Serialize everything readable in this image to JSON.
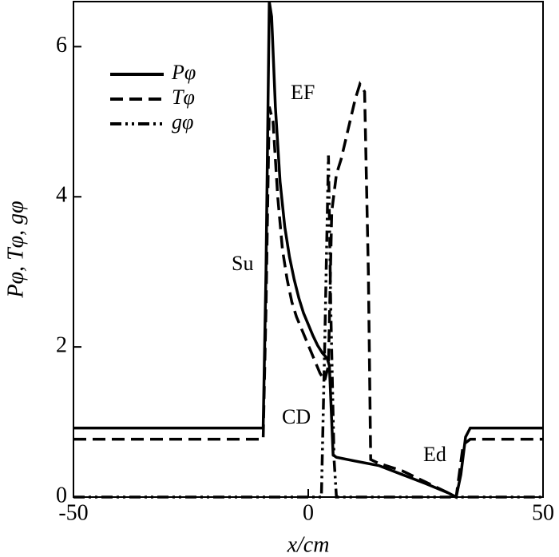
{
  "chart_data": {
    "type": "line",
    "xlabel": "x/cm",
    "ylabel": "Pφ, Tφ, gφ",
    "xlim": [
      -50,
      50
    ],
    "xticks": [
      -50,
      0,
      50
    ],
    "ylim": [
      0,
      6.6
    ],
    "yticks": [
      0,
      2,
      4,
      6
    ],
    "legend": "upper left",
    "annotations": [
      "EF",
      "Su",
      "CD",
      "Ed"
    ],
    "series": [
      {
        "name": "Pφ",
        "color": "#000000",
        "dash": "solid",
        "x": [
          -50,
          -9.6,
          -9.0,
          -8.3,
          -7.8,
          -7.0,
          -6.0,
          -5.0,
          -4.0,
          -3.0,
          -2.0,
          -1.0,
          0.0,
          1.0,
          2.0,
          3.0,
          4.0,
          4.5,
          5.3,
          6.0,
          10,
          15,
          20,
          25,
          30,
          31.5,
          32.5,
          33.5,
          34.5,
          50
        ],
        "values": [
          0.92,
          0.92,
          3.0,
          6.6,
          6.4,
          5.2,
          4.2,
          3.6,
          3.2,
          2.9,
          2.65,
          2.45,
          2.3,
          2.15,
          2.02,
          1.92,
          1.85,
          1.75,
          0.56,
          0.53,
          0.48,
          0.42,
          0.3,
          0.18,
          0.05,
          0.0,
          0.3,
          0.8,
          0.92,
          0.92
        ]
      },
      {
        "name": "Tφ",
        "color": "#000000",
        "dash": "dashed",
        "x": [
          -50,
          -9.6,
          -9.0,
          -8.3,
          -7.5,
          -6.5,
          -5.5,
          -4.5,
          -3.5,
          -2.5,
          -1.5,
          -0.5,
          0.5,
          1.5,
          2.5,
          3.5,
          4.3,
          5.0,
          6.0,
          7.0,
          8.5,
          10.0,
          11.0,
          12.0,
          12.8,
          13.3,
          15,
          20,
          25,
          30,
          31.5,
          33,
          34.5,
          50
        ],
        "values": [
          0.77,
          0.77,
          2.5,
          5.2,
          5.0,
          4.0,
          3.3,
          2.9,
          2.6,
          2.4,
          2.25,
          2.1,
          1.95,
          1.8,
          1.65,
          1.55,
          1.75,
          3.8,
          4.3,
          4.5,
          4.9,
          5.3,
          5.5,
          5.4,
          3.0,
          0.5,
          0.45,
          0.35,
          0.2,
          0.05,
          0.0,
          0.7,
          0.77,
          0.77
        ]
      },
      {
        "name": "gφ",
        "color": "#000000",
        "dash": "dashdot",
        "x": [
          -50,
          2.8,
          3.5,
          4.3,
          4.8,
          5.5,
          6.0,
          50
        ],
        "values": [
          0.0,
          0.0,
          2.0,
          4.55,
          2.5,
          0.5,
          0.0,
          0.0
        ]
      }
    ]
  }
}
